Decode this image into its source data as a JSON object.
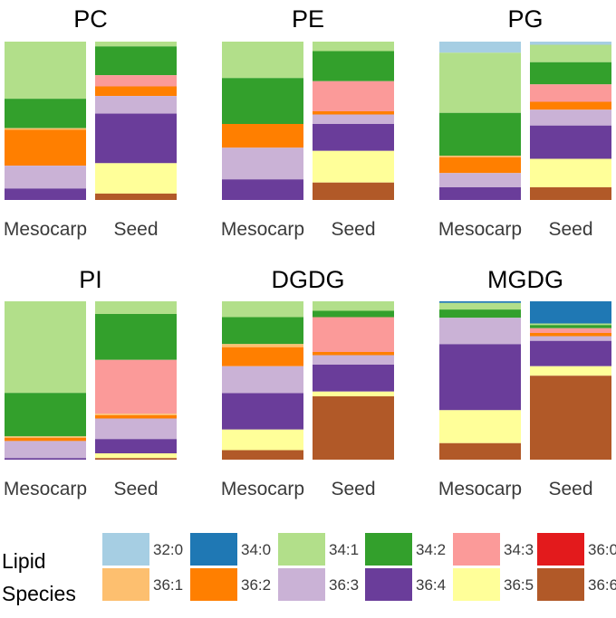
{
  "chart_data": {
    "type": "stacked-bar-100",
    "categories": [
      "Mesocarp",
      "Seed"
    ],
    "species": [
      "32:0",
      "34:0",
      "34:1",
      "34:2",
      "34:3",
      "36:0",
      "36:1",
      "36:2",
      "36:3",
      "36:4",
      "36:5",
      "36:6"
    ],
    "colors": {
      "32:0": "#a6cee3",
      "34:0": "#1f78b4",
      "34:1": "#b2df8a",
      "34:2": "#33a02c",
      "34:3": "#fb9a99",
      "36:0": "#e31a1c",
      "36:1": "#fdbf6f",
      "36:2": "#ff7f00",
      "36:3": "#cab2d6",
      "36:4": "#6a3d9a",
      "36:5": "#ffff99",
      "36:6": "#b15928"
    },
    "panels": [
      {
        "title": "PC",
        "bars": [
          {
            "category": "Mesocarp",
            "values": {
              "32:0": 0,
              "34:0": 0,
              "34:1": 35,
              "34:2": 18,
              "34:3": 0,
              "36:0": 0,
              "36:1": 1,
              "36:2": 22,
              "36:3": 14,
              "36:4": 7,
              "36:5": 0,
              "36:6": 0
            }
          },
          {
            "category": "Seed",
            "values": {
              "32:0": 0,
              "34:0": 0,
              "34:1": 3,
              "34:2": 18,
              "34:3": 7,
              "36:0": 0,
              "36:1": 0,
              "36:2": 6,
              "36:3": 11,
              "36:4": 31,
              "36:5": 19,
              "36:6": 4
            }
          }
        ]
      },
      {
        "title": "PE",
        "bars": [
          {
            "category": "Mesocarp",
            "values": {
              "32:0": 0,
              "34:0": 0,
              "34:1": 23,
              "34:2": 29,
              "34:3": 0,
              "36:0": 0,
              "36:1": 0,
              "36:2": 15,
              "36:3": 20,
              "36:4": 13,
              "36:5": 0,
              "36:6": 0
            }
          },
          {
            "category": "Seed",
            "values": {
              "32:0": 0,
              "34:0": 0,
              "34:1": 6,
              "34:2": 19,
              "34:3": 19,
              "36:0": 0,
              "36:1": 0,
              "36:2": 2,
              "36:3": 6,
              "36:4": 17,
              "36:5": 20,
              "36:6": 11
            }
          }
        ]
      },
      {
        "title": "PG",
        "bars": [
          {
            "category": "Mesocarp",
            "values": {
              "32:0": 7,
              "34:0": 0,
              "34:1": 38,
              "34:2": 27,
              "34:3": 0,
              "36:0": 0,
              "36:1": 1,
              "36:2": 10,
              "36:3": 9,
              "36:4": 8,
              "36:5": 0,
              "36:6": 0
            }
          },
          {
            "category": "Seed",
            "values": {
              "32:0": 2,
              "34:0": 0,
              "34:1": 11,
              "34:2": 14,
              "34:3": 11,
              "36:0": 0,
              "36:1": 0,
              "36:2": 5,
              "36:3": 10,
              "36:4": 21,
              "36:5": 18,
              "36:6": 8
            }
          }
        ]
      },
      {
        "title": "PI",
        "bars": [
          {
            "category": "Mesocarp",
            "values": {
              "32:0": 0,
              "34:0": 0,
              "34:1": 59,
              "34:2": 28,
              "34:3": 0,
              "36:0": 0,
              "36:1": 1,
              "36:2": 2,
              "36:3": 11,
              "36:4": 1,
              "36:5": 0,
              "36:6": 0
            }
          },
          {
            "category": "Seed",
            "values": {
              "32:0": 0,
              "34:0": 0,
              "34:1": 8,
              "34:2": 29,
              "34:3": 34,
              "36:0": 0,
              "36:1": 1,
              "36:2": 2,
              "36:3": 13,
              "36:4": 9,
              "36:5": 3,
              "36:6": 1
            }
          }
        ]
      },
      {
        "title": "DGDG",
        "bars": [
          {
            "category": "Mesocarp",
            "values": {
              "32:0": 0,
              "34:0": 0,
              "34:1": 10,
              "34:2": 17,
              "34:3": 0,
              "36:0": 0,
              "36:1": 2,
              "36:2": 12,
              "36:3": 17,
              "36:4": 23,
              "36:5": 13,
              "36:6": 6
            }
          },
          {
            "category": "Seed",
            "values": {
              "32:0": 0,
              "34:0": 0,
              "34:1": 6,
              "34:2": 4,
              "34:3": 22,
              "36:0": 0,
              "36:1": 0,
              "36:2": 2,
              "36:3": 6,
              "36:4": 17,
              "36:5": 3,
              "36:6": 40
            }
          }
        ]
      },
      {
        "title": "MGDG",
        "bars": [
          {
            "category": "Mesocarp",
            "values": {
              "32:0": 0,
              "34:0": 1,
              "34:1": 4,
              "34:2": 5,
              "34:3": 0,
              "36:0": 0,
              "36:1": 0,
              "36:2": 0,
              "36:3": 16,
              "36:4": 40,
              "36:5": 20,
              "36:6": 10
            }
          },
          {
            "category": "Seed",
            "values": {
              "32:0": 0,
              "34:0": 14,
              "34:1": 1,
              "34:2": 2,
              "34:3": 3,
              "36:0": 0,
              "36:1": 0,
              "36:2": 2,
              "36:3": 3,
              "36:4": 16,
              "36:5": 6,
              "36:6": 53
            }
          }
        ]
      }
    ],
    "legend": {
      "title_line1": "Lipid",
      "title_line2": "Species",
      "position": "bottom"
    },
    "ylim": [
      0,
      100
    ],
    "grid": false
  }
}
